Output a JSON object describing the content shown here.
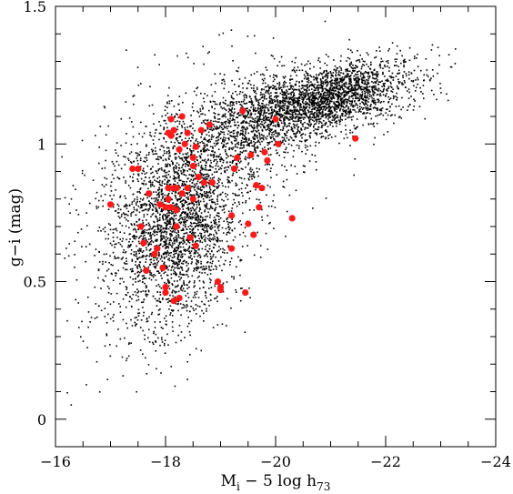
{
  "chart_data": {
    "type": "scatter",
    "title": "",
    "xlabel": "M_i − 5 log h_73",
    "xlabel_parts": {
      "main": "M",
      "sub": "i",
      "mid": " − 5 log h",
      "sub2": "73"
    },
    "ylabel": "g−i (mag)",
    "xlim": [
      -16,
      -24
    ],
    "ylim": [
      -0.1,
      1.5
    ],
    "x_ticks": [
      -16,
      -18,
      -20,
      -22,
      -24
    ],
    "x_tick_labels": [
      "−16",
      "−18",
      "−20",
      "−22",
      "−24"
    ],
    "y_ticks": [
      0,
      0.5,
      1,
      1.5
    ],
    "y_tick_labels": [
      "0",
      "0.5",
      "1",
      "1.5"
    ],
    "x_minor_step": 0.5,
    "y_minor_step": 0.1,
    "grid": false,
    "legend": "none",
    "colors": {
      "background_points": "#000000",
      "highlight_points": "#ff1a1a",
      "frame": "#000000"
    },
    "series": [
      {
        "role": "background",
        "marker": "dot",
        "n_points_approx": 6000,
        "note_density": "dense cloud: red sequence g−i ≈ 1.1–1.25 at M_i ≈ −20 to −22.5; blue cloud g−i ≈ 0.4–0.9 at M_i ≈ −17 to −19"
      },
      {
        "role": "highlight",
        "marker": "circle",
        "x": [
          -17.0,
          -17.4,
          -17.55,
          -17.65,
          -17.7,
          -17.85,
          -17.95,
          -18.0,
          -18.05,
          -18.1,
          -18.15,
          -18.2,
          -18.25,
          -17.5,
          -17.6,
          -17.8,
          -17.9,
          -18.0,
          -18.05,
          -18.1,
          -18.15,
          -18.2,
          -18.3,
          -18.35,
          -18.4,
          -18.45,
          -18.5,
          -18.5,
          -18.55,
          -18.6,
          -18.65,
          -18.7,
          -18.8,
          -18.85,
          -18.3,
          -18.25,
          -18.1,
          -18.0,
          -18.05,
          -18.15,
          -18.2,
          -18.4,
          -18.5,
          -18.55,
          -19.0,
          -19.2,
          -19.25,
          -19.3,
          -19.4,
          -19.5,
          -19.55,
          -19.6,
          -19.65,
          -19.7,
          -19.75,
          -19.8,
          -19.85,
          -20.0,
          -20.05,
          -20.3,
          -21.45,
          -19.0,
          -19.45,
          -19.2,
          -18.95
        ],
        "y": [
          0.78,
          0.91,
          0.7,
          0.54,
          0.82,
          0.62,
          0.55,
          0.77,
          0.8,
          1.03,
          1.05,
          0.84,
          0.44,
          0.91,
          0.64,
          0.6,
          0.78,
          0.48,
          0.84,
          0.77,
          0.84,
          0.76,
          0.82,
          1.0,
          0.84,
          0.66,
          0.8,
          0.92,
          0.99,
          0.88,
          1.05,
          0.86,
          1.07,
          0.86,
          1.1,
          0.98,
          1.09,
          0.46,
          1.04,
          0.43,
          0.7,
          1.04,
          0.95,
          0.63,
          0.48,
          0.74,
          0.91,
          0.95,
          1.12,
          0.71,
          0.96,
          0.67,
          0.85,
          0.77,
          0.84,
          0.97,
          0.94,
          1.09,
          1.0,
          0.73,
          1.02,
          0.47,
          0.46,
          0.62,
          0.5
        ]
      }
    ]
  }
}
